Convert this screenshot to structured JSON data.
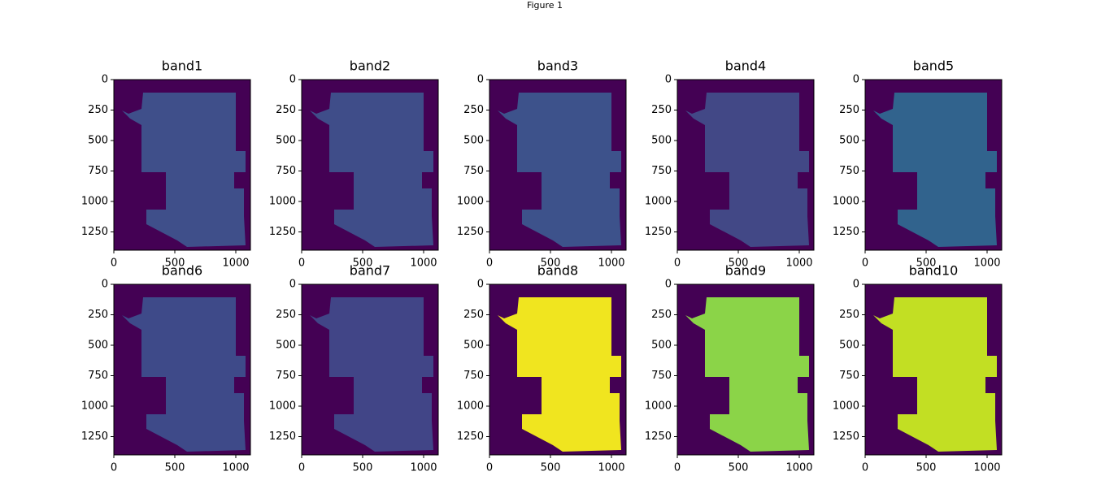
{
  "window_title": "Figure 1",
  "chart_data": [
    {
      "type": "image",
      "title": "band1",
      "background": "#440154",
      "color": "#3f4f8a",
      "xlim": [
        0,
        1120
      ],
      "ylim": [
        1400,
        0
      ],
      "xticks": [
        0,
        500,
        1000
      ],
      "yticks": [
        0,
        250,
        500,
        750,
        1000,
        1250
      ]
    },
    {
      "type": "image",
      "title": "band2",
      "background": "#440154",
      "color": "#3f4d89",
      "xlim": [
        0,
        1120
      ],
      "ylim": [
        1400,
        0
      ],
      "xticks": [
        0,
        500,
        1000
      ],
      "yticks": [
        0,
        250,
        500,
        750,
        1000,
        1250
      ]
    },
    {
      "type": "image",
      "title": "band3",
      "background": "#440154",
      "color": "#3d528b",
      "xlim": [
        0,
        1120
      ],
      "ylim": [
        1400,
        0
      ],
      "xticks": [
        0,
        500,
        1000
      ],
      "yticks": [
        0,
        250,
        500,
        750,
        1000,
        1250
      ]
    },
    {
      "type": "image",
      "title": "band4",
      "background": "#440154",
      "color": "#424886",
      "xlim": [
        0,
        1120
      ],
      "ylim": [
        1400,
        0
      ],
      "xticks": [
        0,
        500,
        1000
      ],
      "yticks": [
        0,
        250,
        500,
        750,
        1000,
        1250
      ]
    },
    {
      "type": "image",
      "title": "band5",
      "background": "#440154",
      "color": "#31638d",
      "xlim": [
        0,
        1120
      ],
      "ylim": [
        1400,
        0
      ],
      "xticks": [
        0,
        500,
        1000
      ],
      "yticks": [
        0,
        250,
        500,
        750,
        1000,
        1250
      ]
    },
    {
      "type": "image",
      "title": "band6",
      "background": "#440154",
      "color": "#3e4a89",
      "xlim": [
        0,
        1120
      ],
      "ylim": [
        1400,
        0
      ],
      "xticks": [
        0,
        500,
        1000
      ],
      "yticks": [
        0,
        250,
        500,
        750,
        1000,
        1250
      ]
    },
    {
      "type": "image",
      "title": "band7",
      "background": "#440154",
      "color": "#414587",
      "xlim": [
        0,
        1120
      ],
      "ylim": [
        1400,
        0
      ],
      "xticks": [
        0,
        500,
        1000
      ],
      "yticks": [
        0,
        250,
        500,
        750,
        1000,
        1250
      ]
    },
    {
      "type": "image",
      "title": "band8",
      "background": "#440154",
      "color": "#f0e51f",
      "xlim": [
        0,
        1120
      ],
      "ylim": [
        1400,
        0
      ],
      "xticks": [
        0,
        500,
        1000
      ],
      "yticks": [
        0,
        250,
        500,
        750,
        1000,
        1250
      ]
    },
    {
      "type": "image",
      "title": "band9",
      "background": "#440154",
      "color": "#8bd448",
      "xlim": [
        0,
        1120
      ],
      "ylim": [
        1400,
        0
      ],
      "xticks": [
        0,
        500,
        1000
      ],
      "yticks": [
        0,
        250,
        500,
        750,
        1000,
        1250
      ]
    },
    {
      "type": "image",
      "title": "band10",
      "background": "#440154",
      "color": "#c2df23",
      "xlim": [
        0,
        1120
      ],
      "ylim": [
        1400,
        0
      ],
      "xticks": [
        0,
        500,
        1000
      ],
      "yticks": [
        0,
        250,
        500,
        750,
        1000,
        1250
      ]
    }
  ]
}
